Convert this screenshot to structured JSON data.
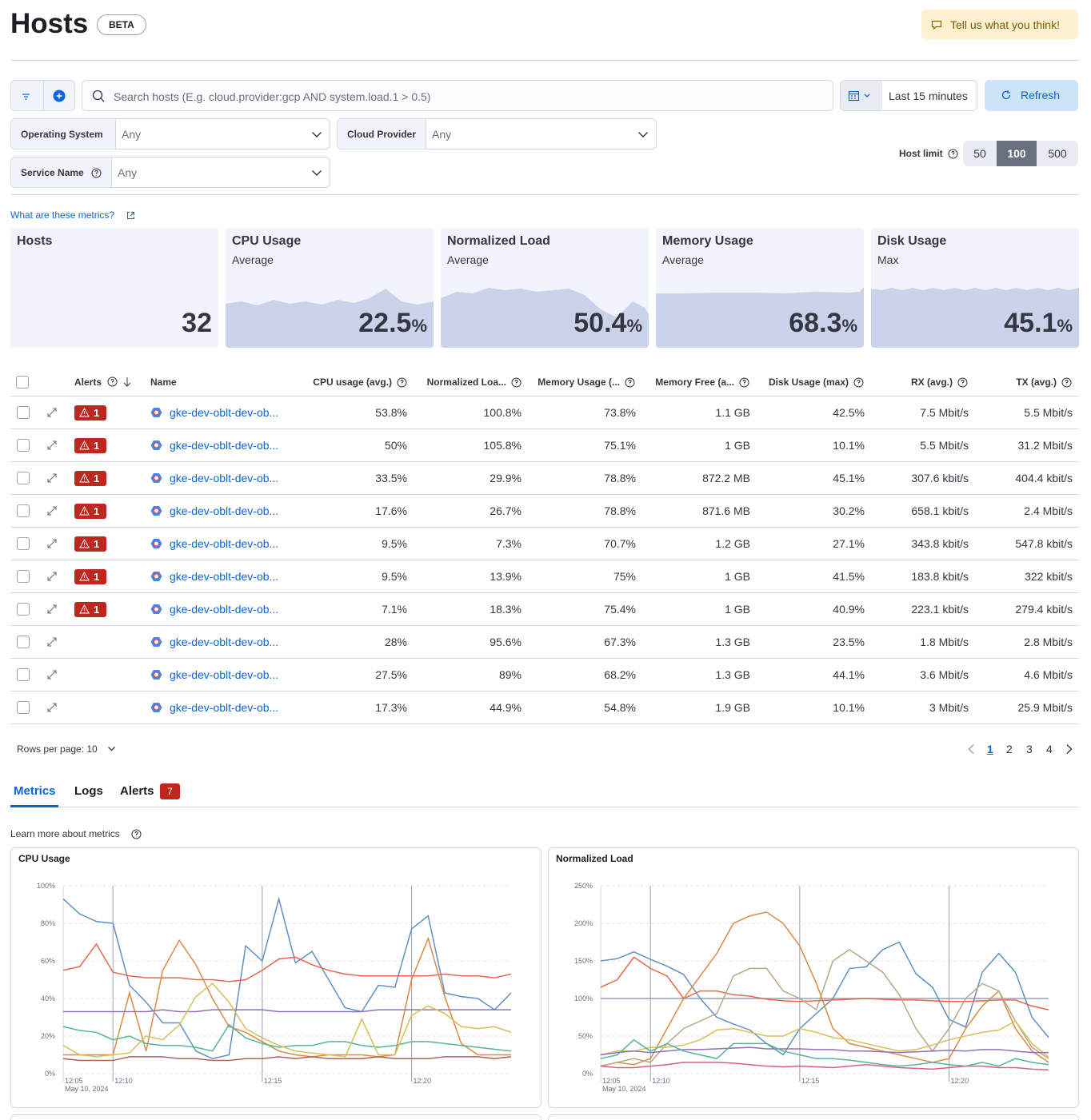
{
  "header": {
    "title": "Hosts",
    "badge": "BETA",
    "feedback": "Tell us what you think!"
  },
  "search": {
    "placeholder": "Search hosts (E.g. cloud.provider:gcp AND system.load.1 > 0.5)",
    "time_range": "Last 15 minutes",
    "refresh": "Refresh"
  },
  "filters": [
    {
      "label": "Operating System",
      "value": "Any"
    },
    {
      "label": "Cloud Provider",
      "value": "Any"
    },
    {
      "label": "Service Name",
      "value": "Any"
    }
  ],
  "host_limit": {
    "label": "Host limit",
    "options": [
      "50",
      "100",
      "500"
    ],
    "selected": 1
  },
  "metrics_link": "What are these metrics?",
  "kpis": [
    {
      "title": "Hosts",
      "value": 32
    },
    {
      "title": "CPU Usage",
      "subtitle": "Average",
      "value": 22.5,
      "unit": "%"
    },
    {
      "title": "Normalized Load",
      "subtitle": "Average",
      "value": 50.4,
      "unit": "%"
    },
    {
      "title": "Memory Usage",
      "subtitle": "Average",
      "value": 68.3,
      "unit": "%"
    },
    {
      "title": "Disk Usage",
      "subtitle": "Max",
      "value": 45.1,
      "unit": "%"
    }
  ],
  "table": {
    "columns": [
      "Alerts",
      "Name",
      "CPU usage (avg.)",
      "Normalized Loa...",
      "Memory Usage (...",
      "Memory Free (a...",
      "Disk Usage (max)",
      "RX (avg.)",
      "TX (avg.)"
    ],
    "rows": [
      {
        "alerts": "1",
        "name": "gke-dev-oblt-dev-ob...",
        "cells": [
          "53.8%",
          "100.8%",
          "73.8%",
          "1.1 GB",
          "42.5%",
          "7.5 Mbit/s",
          "5.5 Mbit/s"
        ]
      },
      {
        "alerts": "1",
        "name": "gke-dev-oblt-dev-ob...",
        "cells": [
          "50%",
          "105.8%",
          "75.1%",
          "1 GB",
          "10.1%",
          "5.5 Mbit/s",
          "31.2 Mbit/s"
        ]
      },
      {
        "alerts": "1",
        "name": "gke-dev-oblt-dev-ob...",
        "cells": [
          "33.5%",
          "29.9%",
          "78.8%",
          "872.2 MB",
          "45.1%",
          "307.6 kbit/s",
          "404.4 kbit/s"
        ]
      },
      {
        "alerts": "1",
        "name": "gke-dev-oblt-dev-ob...",
        "cells": [
          "17.6%",
          "26.7%",
          "78.8%",
          "871.6 MB",
          "30.2%",
          "658.1 kbit/s",
          "2.4 Mbit/s"
        ]
      },
      {
        "alerts": "1",
        "name": "gke-dev-oblt-dev-ob...",
        "cells": [
          "9.5%",
          "7.3%",
          "70.7%",
          "1.2 GB",
          "27.1%",
          "343.8 kbit/s",
          "547.8 kbit/s"
        ]
      },
      {
        "alerts": "1",
        "name": "gke-dev-oblt-dev-ob...",
        "cells": [
          "9.5%",
          "13.9%",
          "75%",
          "1 GB",
          "41.5%",
          "183.8 kbit/s",
          "322 kbit/s"
        ]
      },
      {
        "alerts": "1",
        "name": "gke-dev-oblt-dev-ob...",
        "cells": [
          "7.1%",
          "18.3%",
          "75.4%",
          "1 GB",
          "40.9%",
          "223.1 kbit/s",
          "279.4 kbit/s"
        ]
      },
      {
        "name": "gke-dev-oblt-dev-ob...",
        "cells": [
          "28%",
          "95.6%",
          "67.3%",
          "1.3 GB",
          "23.5%",
          "1.8 Mbit/s",
          "2.8 Mbit/s"
        ]
      },
      {
        "name": "gke-dev-oblt-dev-ob...",
        "cells": [
          "27.5%",
          "89%",
          "68.2%",
          "1.3 GB",
          "44.1%",
          "3.6 Mbit/s",
          "4.6 Mbit/s"
        ]
      },
      {
        "name": "gke-dev-oblt-dev-ob...",
        "cells": [
          "17.3%",
          "44.9%",
          "54.8%",
          "1.9 GB",
          "10.1%",
          "3 Mbit/s",
          "25.9 Mbit/s"
        ]
      }
    ]
  },
  "pagination": {
    "rows_per_page": "Rows per page: 10",
    "pages": [
      "1",
      "2",
      "3",
      "4"
    ]
  },
  "tabs": [
    {
      "label": "Metrics"
    },
    {
      "label": "Logs"
    },
    {
      "label": "Alerts",
      "count": "7"
    }
  ],
  "learn_more": "Learn more about metrics",
  "chart_data": [
    {
      "type": "line",
      "title": "CPU Usage",
      "categories": [
        "12:05",
        null,
        null,
        "12:10",
        null,
        null,
        null,
        null,
        null,
        null,
        null,
        null,
        "12:15",
        null,
        null,
        null,
        null,
        null,
        null,
        null,
        null,
        "12:20",
        null,
        null,
        null,
        null,
        null,
        null
      ],
      "x_sublabel": "May 10, 2024",
      "ylim": [
        0,
        100
      ],
      "yticks": [
        {
          "value": 0,
          "label": "0%"
        },
        {
          "value": 20,
          "label": "20%"
        },
        {
          "value": 40,
          "label": "40%"
        },
        {
          "value": 60,
          "label": "60%"
        },
        {
          "value": 80,
          "label": "80%"
        },
        {
          "value": 100,
          "label": "100%"
        }
      ],
      "grid": true,
      "series": [
        {
          "color": "#6092c0",
          "values": [
            93,
            85,
            81,
            80,
            47,
            38,
            27,
            27,
            12,
            8,
            10,
            68,
            60,
            93,
            59,
            65,
            50,
            35,
            33,
            47,
            46,
            77,
            84,
            43,
            41,
            40,
            34,
            43
          ]
        },
        {
          "color": "#e7664c",
          "values": [
            55,
            57,
            69,
            54,
            52,
            51,
            51,
            51,
            50,
            50,
            49,
            50,
            55,
            61,
            62,
            58,
            55,
            53,
            52,
            52,
            52,
            52,
            52,
            53,
            52,
            52,
            51,
            53
          ]
        },
        {
          "color": "#da8b45",
          "values": [
            10,
            10,
            10,
            10,
            43,
            12,
            55,
            71,
            58,
            40,
            25,
            22,
            17,
            12,
            10,
            9,
            10,
            10,
            10,
            9,
            10,
            50,
            72,
            41,
            16,
            10,
            10,
            10
          ]
        },
        {
          "color": "#9170b8",
          "values": [
            33,
            33,
            33,
            33,
            33,
            33,
            34,
            33,
            33,
            34,
            34,
            34,
            34,
            33,
            33,
            33,
            33,
            33,
            33,
            34,
            34,
            34,
            34,
            34,
            34,
            34,
            34,
            34
          ]
        },
        {
          "color": "#54b399",
          "values": [
            25,
            23,
            22,
            18,
            20,
            16,
            15,
            15,
            14,
            12,
            26,
            19,
            16,
            14,
            15,
            15,
            17,
            17,
            15,
            14,
            15,
            17,
            17,
            16,
            15,
            14,
            13,
            12
          ]
        },
        {
          "color": "#d6bf57",
          "values": [
            15,
            10,
            9,
            10,
            11,
            20,
            18,
            26,
            41,
            48,
            38,
            24,
            19,
            15,
            12,
            11,
            10,
            9,
            29,
            10,
            10,
            31,
            36,
            32,
            25,
            24,
            25,
            22
          ]
        },
        {
          "color": "#aa6556",
          "values": [
            8,
            7,
            7,
            7,
            9,
            9,
            9,
            8,
            8,
            7,
            7,
            8,
            8,
            9,
            8,
            9,
            8,
            8,
            8,
            9,
            8,
            8,
            8,
            9,
            9,
            9,
            8,
            9
          ]
        }
      ]
    },
    {
      "type": "line",
      "title": "Normalized Load",
      "categories": [
        "12:05",
        null,
        null,
        "12:10",
        null,
        null,
        null,
        null,
        null,
        null,
        null,
        null,
        "12:15",
        null,
        null,
        null,
        null,
        null,
        null,
        null,
        null,
        "12:20",
        null,
        null,
        null,
        null,
        null,
        null
      ],
      "x_sublabel": "May 10, 2024",
      "ylim": [
        0,
        250
      ],
      "yticks": [
        {
          "value": 0,
          "label": "0%"
        },
        {
          "value": 50,
          "label": "50%"
        },
        {
          "value": 100,
          "label": "100%"
        },
        {
          "value": 150,
          "label": "150%"
        },
        {
          "value": 200,
          "label": "200%"
        },
        {
          "value": 250,
          "label": "250%"
        }
      ],
      "grid": true,
      "reference_line": 100,
      "series": [
        {
          "color": "#6092c0",
          "values": [
            150,
            153,
            162,
            152,
            143,
            132,
            100,
            75,
            66,
            58,
            40,
            25,
            60,
            80,
            100,
            140,
            142,
            165,
            175,
            133,
            115,
            72,
            62,
            135,
            160,
            135,
            75,
            48
          ]
        },
        {
          "color": "#e7664c",
          "values": [
            115,
            125,
            155,
            140,
            130,
            100,
            110,
            110,
            105,
            103,
            99,
            97,
            96,
            97,
            98,
            99,
            100,
            99,
            98,
            98,
            97,
            96,
            96,
            97,
            98,
            98,
            90,
            85
          ]
        },
        {
          "color": "#da8b45",
          "values": [
            10,
            15,
            12,
            20,
            60,
            100,
            130,
            160,
            200,
            210,
            215,
            200,
            170,
            120,
            60,
            40,
            35,
            30,
            25,
            20,
            15,
            20,
            60,
            90,
            110,
            60,
            30,
            15
          ]
        },
        {
          "color": "#b9a888",
          "values": [
            10,
            15,
            20,
            15,
            40,
            60,
            70,
            80,
            130,
            140,
            140,
            110,
            100,
            85,
            150,
            165,
            150,
            135,
            105,
            60,
            30,
            60,
            100,
            120,
            110,
            70,
            35,
            20
          ]
        },
        {
          "color": "#d6bf57",
          "values": [
            25,
            30,
            30,
            35,
            35,
            38,
            45,
            58,
            60,
            55,
            50,
            50,
            60,
            55,
            48,
            45,
            40,
            35,
            30,
            32,
            38,
            45,
            50,
            55,
            58,
            70,
            40,
            22
          ]
        },
        {
          "color": "#9170b8",
          "values": [
            25,
            28,
            30,
            28,
            30,
            32,
            32,
            33,
            34,
            35,
            33,
            33,
            33,
            32,
            32,
            30,
            30,
            29,
            28,
            29,
            30,
            31,
            30,
            32,
            32,
            30,
            28,
            28
          ]
        },
        {
          "color": "#d36086",
          "values": [
            10,
            8,
            8,
            10,
            12,
            15,
            15,
            15,
            14,
            12,
            10,
            9,
            10,
            9,
            8,
            10,
            12,
            10,
            8,
            7,
            6,
            8,
            10,
            10,
            8,
            8,
            6,
            5
          ]
        },
        {
          "color": "#54b399",
          "values": [
            20,
            25,
            45,
            30,
            40,
            30,
            25,
            20,
            40,
            40,
            40,
            30,
            25,
            20,
            20,
            18,
            15,
            12,
            10,
            12,
            15,
            12,
            10,
            15,
            10,
            20,
            15,
            12
          ]
        }
      ]
    }
  ]
}
